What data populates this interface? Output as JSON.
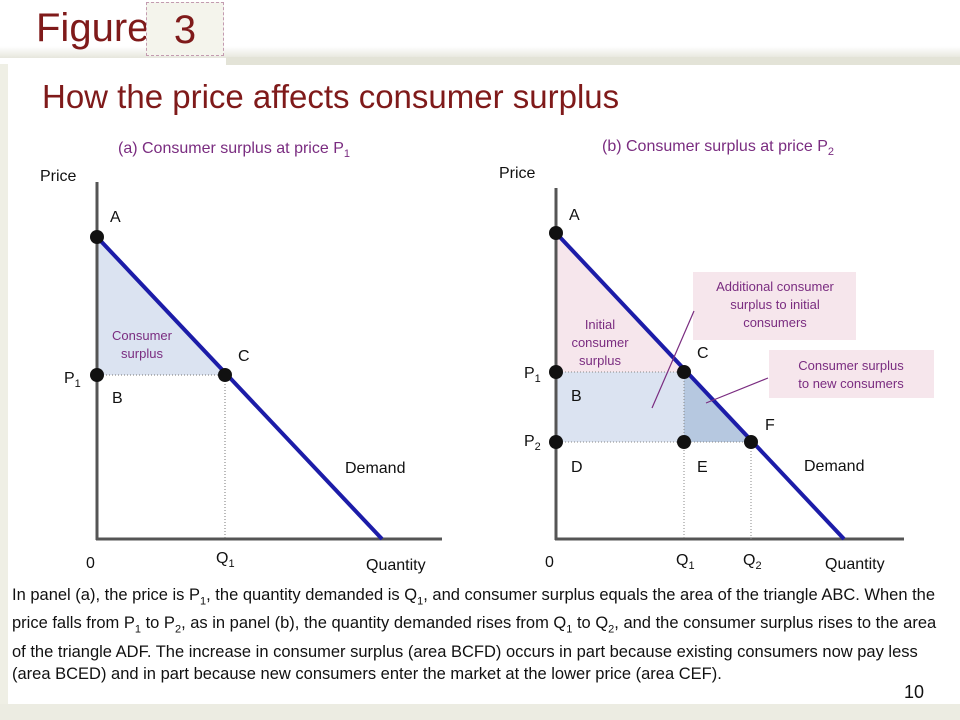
{
  "header": {
    "figure_label": "Figure",
    "figure_number": "3",
    "title": "How the price affects consumer surplus"
  },
  "panel_a": {
    "title": "(a) Consumer surplus at price P",
    "title_sub": "1",
    "y_axis_label": "Price",
    "x_axis_label": "Quantity",
    "origin_label": "0",
    "points": {
      "A": "A",
      "B": "B",
      "C": "C"
    },
    "p1_label": "P",
    "p1_sub": "1",
    "q1_label": "Q",
    "q1_sub": "1",
    "surplus_label_1": "Consumer",
    "surplus_label_2": "surplus",
    "demand_label": "Demand"
  },
  "panel_b": {
    "title": "(b) Consumer surplus at price P",
    "title_sub": "2",
    "y_axis_label": "Price",
    "x_axis_label": "Quantity",
    "origin_label": "0",
    "points": {
      "A": "A",
      "B": "B",
      "C": "C",
      "D": "D",
      "E": "E",
      "F": "F"
    },
    "p1_label": "P",
    "p1_sub": "1",
    "p2_label": "P",
    "p2_sub": "2",
    "q1_label": "Q",
    "q1_sub": "1",
    "q2_label": "Q",
    "q2_sub": "2",
    "initial_label_1": "Initial",
    "initial_label_2": "consumer",
    "initial_label_3": "surplus",
    "additional_label_1": "Additional consumer",
    "additional_label_2": "surplus to initial",
    "additional_label_3": "consumers",
    "new_label_1": "Consumer surplus",
    "new_label_2": "to new consumers",
    "demand_label": "Demand"
  },
  "caption": {
    "t1": "In panel (a), the price is P",
    "s1": "1",
    "t2": ", the quantity demanded is Q",
    "s2": "1",
    "t3": ", and consumer surplus equals the area of the triangle ABC. When the price falls from P",
    "s3": "1",
    "t4": " to P",
    "s4": "2",
    "t5": ", as in panel (b), the quantity demanded rises from Q",
    "s5": "1",
    "t6": " to Q",
    "s6": "2",
    "t7": ", and the consumer surplus rises to the area of the triangle ADF. The increase in consumer surplus (area BCFD) occurs in part because existing consumers now pay less (area BCED) and in part because new consumers enter the market at the lower price (area CEF)."
  },
  "page_number": "10",
  "colors": {
    "accent": "#7f1a1a",
    "demand_line": "#1c1ca8",
    "surplus_fill": "#dbe3f1",
    "initial_fill": "#f6e6ec",
    "new_fill": "#b6c8e0",
    "callout_purple": "#7a2c80"
  }
}
